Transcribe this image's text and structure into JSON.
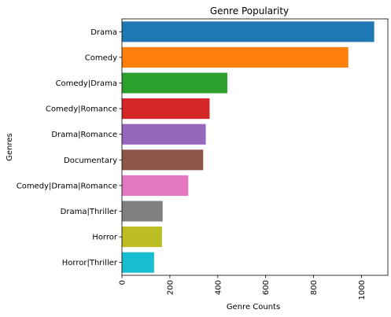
{
  "chart_data": {
    "type": "bar",
    "orientation": "horizontal",
    "title": "Genre Popularity",
    "xlabel": "Genre Counts",
    "ylabel": "Genres",
    "categories": [
      "Drama",
      "Comedy",
      "Comedy|Drama",
      "Comedy|Romance",
      "Drama|Romance",
      "Documentary",
      "Comedy|Drama|Romance",
      "Drama|Thriller",
      "Horror",
      "Horror|Thriller"
    ],
    "values": [
      1053,
      945,
      440,
      366,
      350,
      339,
      277,
      170,
      167,
      134
    ],
    "colors": [
      "#1f77b4",
      "#ff7f0e",
      "#2ca02c",
      "#d62728",
      "#9467bd",
      "#8c564b",
      "#e377c2",
      "#7f7f7f",
      "#bcbd22",
      "#17becf"
    ],
    "xlim": [
      0,
      1110
    ],
    "xticks": [
      0,
      200,
      400,
      600,
      800,
      1000
    ],
    "xtick_labels": [
      "0",
      "200",
      "400",
      "600",
      "800",
      "1000"
    ],
    "xtick_rotation": 90,
    "grid": false,
    "legend": "none"
  }
}
